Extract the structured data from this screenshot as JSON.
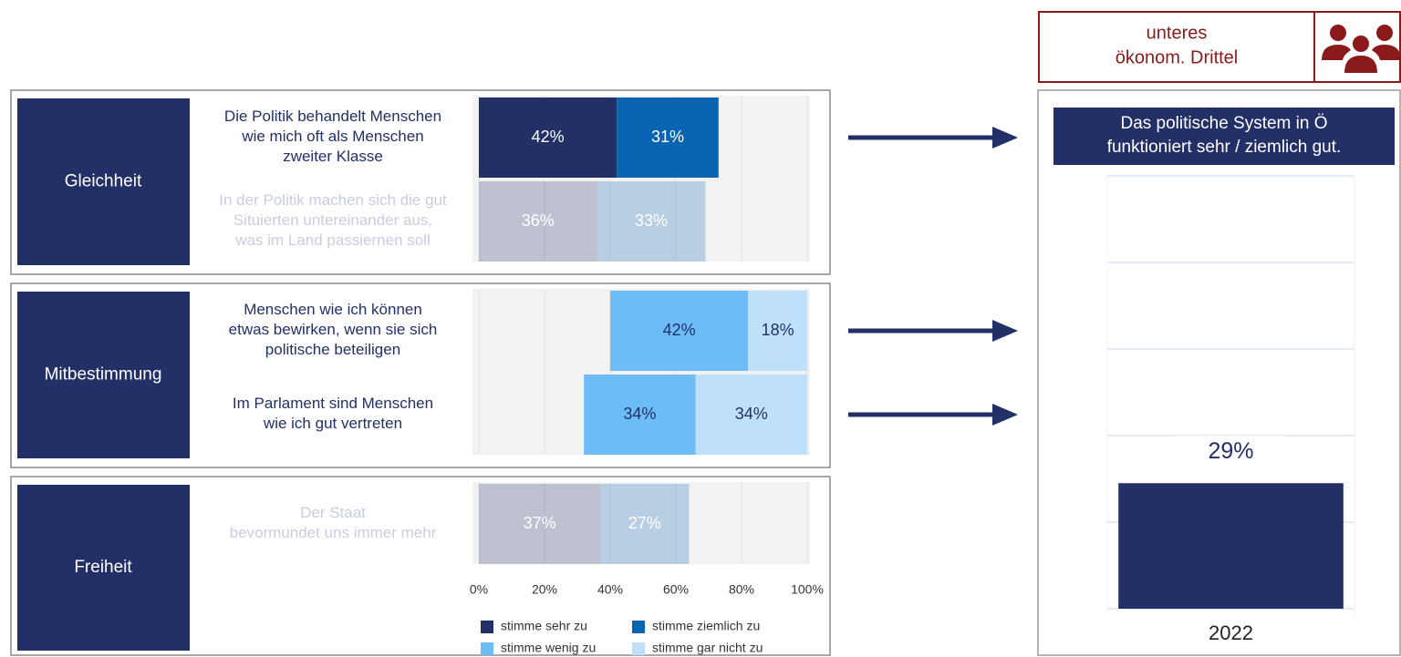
{
  "group_badge": {
    "title": "unteres\nökonom. Drittel"
  },
  "chart_data": [
    {
      "type": "bar",
      "orientation": "horizontal",
      "stacked": true,
      "xlim": [
        0,
        100
      ],
      "xticks": [
        {
          "value": 0,
          "label": "0%"
        },
        {
          "value": 20,
          "label": "20%"
        },
        {
          "value": 40,
          "label": "40%"
        },
        {
          "value": 60,
          "label": "60%"
        },
        {
          "value": 80,
          "label": "80%"
        },
        {
          "value": 100,
          "label": "100%"
        }
      ],
      "grid": true,
      "legend": "bottom",
      "series": [
        {
          "name": "stimme sehr zu",
          "color": "#233068"
        },
        {
          "name": "stimme ziemlich zu",
          "color": "#0a64b1"
        },
        {
          "name": "stimme wenig zu",
          "color": "#6cbcf7"
        },
        {
          "name": "stimme gar nicht zu",
          "color": "#bfe0fb"
        }
      ],
      "panels": [
        {
          "label": "Gleichheit",
          "categories": [
            "Die Politik behandelt Menschen\nwie mich oft als Menschen\nzweiter Klasse",
            "In der Politik machen sich die gut\nSituierten untereinander aus,\nwas im Land passiernen soll"
          ],
          "faded": [
            false,
            true
          ],
          "values": [
            [
              42,
              31,
              null,
              null
            ],
            [
              36,
              33,
              null,
              null
            ]
          ],
          "value_labels": [
            [
              "42%",
              "31%",
              null,
              null
            ],
            [
              "36%",
              "33%",
              null,
              null
            ]
          ]
        },
        {
          "label": "Mitbestimmung",
          "categories": [
            "Menschen wie ich können\netwas bewirken, wenn sie sich\npolitische beteiligen",
            "Im Parlament sind Menschen\nwie ich gut vertreten"
          ],
          "faded": [
            false,
            false
          ],
          "values": [
            [
              null,
              null,
              42,
              18
            ],
            [
              null,
              null,
              34,
              34
            ]
          ],
          "value_labels": [
            [
              null,
              null,
              "42%",
              "18%"
            ],
            [
              null,
              null,
              "34%",
              "34%"
            ]
          ]
        },
        {
          "label": "Freiheit",
          "categories": [
            "Der Staat\nbevormundet uns immer mehr"
          ],
          "faded": [
            true
          ],
          "values": [
            [
              37,
              27,
              null,
              null
            ]
          ],
          "value_labels": [
            [
              "37%",
              "27%",
              null,
              null
            ]
          ]
        }
      ]
    },
    {
      "type": "bar",
      "title": "Das politische System in Ö\nfunktioniert sehr / ziemlich gut.",
      "categories": [
        "2022"
      ],
      "values": [
        29
      ],
      "value_labels": [
        "29%"
      ],
      "color": "#233068",
      "ylim": [
        0,
        100
      ],
      "yticks": [
        0,
        20,
        40,
        60,
        80,
        100
      ],
      "grid": true
    }
  ]
}
